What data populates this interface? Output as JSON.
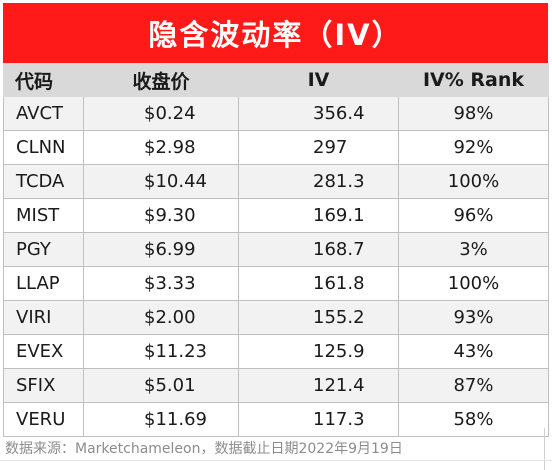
{
  "title": "隐含波动率（IV）",
  "headers": {
    "code": "代码",
    "price": "收盘价",
    "iv": "IV",
    "rank": "IV% Rank"
  },
  "rows": [
    {
      "ticker": "AVCT",
      "price": "$0.24",
      "iv": "356.4",
      "rank": "98%"
    },
    {
      "ticker": "CLNN",
      "price": "$2.98",
      "iv": "297",
      "rank": "92%"
    },
    {
      "ticker": "TCDA",
      "price": "$10.44",
      "iv": "281.3",
      "rank": "100%"
    },
    {
      "ticker": "MIST",
      "price": "$9.30",
      "iv": "169.1",
      "rank": "96%"
    },
    {
      "ticker": "PGY",
      "price": "$6.99",
      "iv": "168.7",
      "rank": "3%"
    },
    {
      "ticker": "LLAP",
      "price": "$3.33",
      "iv": "161.8",
      "rank": "100%"
    },
    {
      "ticker": "VIRI",
      "price": "$2.00",
      "iv": "155.2",
      "rank": "93%"
    },
    {
      "ticker": "EVEX",
      "price": "$11.23",
      "iv": "125.9",
      "rank": "43%"
    },
    {
      "ticker": "SFIX",
      "price": "$5.01",
      "iv": "121.4",
      "rank": "87%"
    },
    {
      "ticker": "VERU",
      "price": "$11.69",
      "iv": "117.3",
      "rank": "58%"
    }
  ],
  "footer": "数据来源：Marketchameleon，数据截止日期2022年9月19日",
  "colors": {
    "title_bg": "#ff1a1a",
    "header_bg": "#d9d9d9",
    "stripe_bg": "#f2f2f2"
  }
}
